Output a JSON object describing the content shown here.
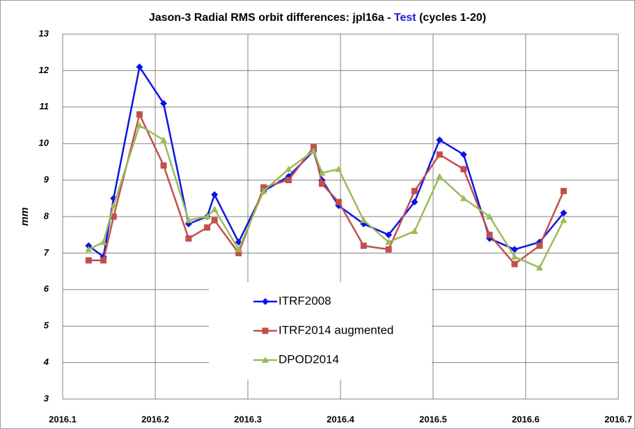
{
  "chart_data": {
    "type": "line",
    "title": [
      {
        "text": "Jason-3 Radial RMS orbit differences: jpl16a - ",
        "color": "#000000"
      },
      {
        "text": "Test",
        "color": "#1f1fd0"
      },
      {
        "text": " (cycles 1-20)",
        "color": "#000000"
      }
    ],
    "y_label": "mm",
    "x": [
      2016.128,
      2016.144,
      2016.155,
      2016.183,
      2016.209,
      2016.236,
      2016.256,
      2016.264,
      2016.29,
      2016.317,
      2016.344,
      2016.371,
      2016.38,
      2016.398,
      2016.425,
      2016.452,
      2016.48,
      2016.507,
      2016.533,
      2016.561,
      2016.588,
      2016.615,
      2016.641
    ],
    "series": [
      {
        "name": "ITRF2008",
        "color": "#0a14e6",
        "marker": "diamond",
        "values": [
          7.2,
          6.9,
          8.5,
          12.1,
          11.1,
          7.8,
          8.0,
          8.6,
          7.3,
          8.7,
          9.1,
          9.8,
          9.0,
          8.3,
          7.8,
          7.5,
          8.4,
          10.1,
          9.7,
          7.4,
          7.1,
          7.3,
          8.1
        ]
      },
      {
        "name": "ITRF2014 augmented",
        "color": "#c0504d",
        "marker": "square",
        "values": [
          6.8,
          6.8,
          8.0,
          10.8,
          9.4,
          7.4,
          7.7,
          7.9,
          7.0,
          8.8,
          9.0,
          9.9,
          8.9,
          8.4,
          7.2,
          7.1,
          8.7,
          9.7,
          9.3,
          7.5,
          6.7,
          7.2,
          8.7
        ]
      },
      {
        "name": "DPOD2014",
        "color": "#9bbb59",
        "marker": "triangle",
        "values": [
          7.1,
          7.3,
          8.3,
          10.5,
          10.1,
          7.9,
          8.0,
          8.2,
          7.1,
          8.7,
          9.3,
          9.8,
          9.2,
          9.3,
          7.9,
          7.3,
          7.6,
          9.1,
          8.5,
          8.0,
          6.9,
          6.6,
          7.9
        ]
      }
    ],
    "xlim": [
      2016.1,
      2016.7
    ],
    "xticks": [
      2016.1,
      2016.2,
      2016.3,
      2016.4,
      2016.5,
      2016.6,
      2016.7
    ],
    "ylim": [
      3,
      13
    ],
    "yticks": [
      3,
      4,
      5,
      6,
      7,
      8,
      9,
      10,
      11,
      12,
      13
    ],
    "grid": true
  }
}
